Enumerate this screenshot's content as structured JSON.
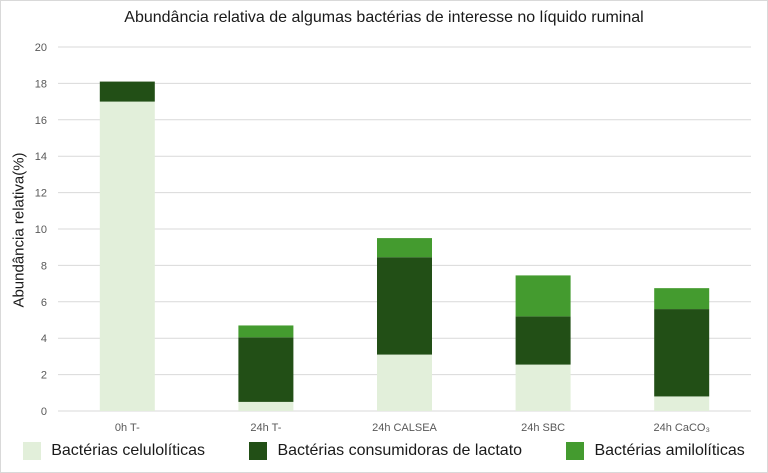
{
  "chart_data": {
    "type": "bar",
    "stacked": true,
    "title": "Abundância relativa de algumas bactérias de interesse no líquido ruminal",
    "xlabel": "",
    "ylabel": "Abundância relativa(%)",
    "ylim": [
      0,
      20
    ],
    "yticks": [
      0,
      2,
      4,
      6,
      8,
      10,
      12,
      14,
      16,
      18,
      20
    ],
    "grid": true,
    "legend_position": "bottom",
    "categories": [
      "0h T-",
      "24h T-",
      "24h CALSEA",
      "24h SBC",
      "24h CaCO₃"
    ],
    "series": [
      {
        "name": "Bactérias celulolíticas",
        "color": "#e2efda",
        "values": [
          17.0,
          0.5,
          3.1,
          2.55,
          0.8
        ]
      },
      {
        "name": "Bactérias consumidoras de lactato",
        "color": "#224f16",
        "values": [
          1.1,
          3.55,
          5.35,
          2.65,
          4.8
        ]
      },
      {
        "name": "Bactérias amilolíticas",
        "color": "#449b2f",
        "values": [
          0,
          0.65,
          1.05,
          2.25,
          1.15
        ]
      }
    ]
  }
}
